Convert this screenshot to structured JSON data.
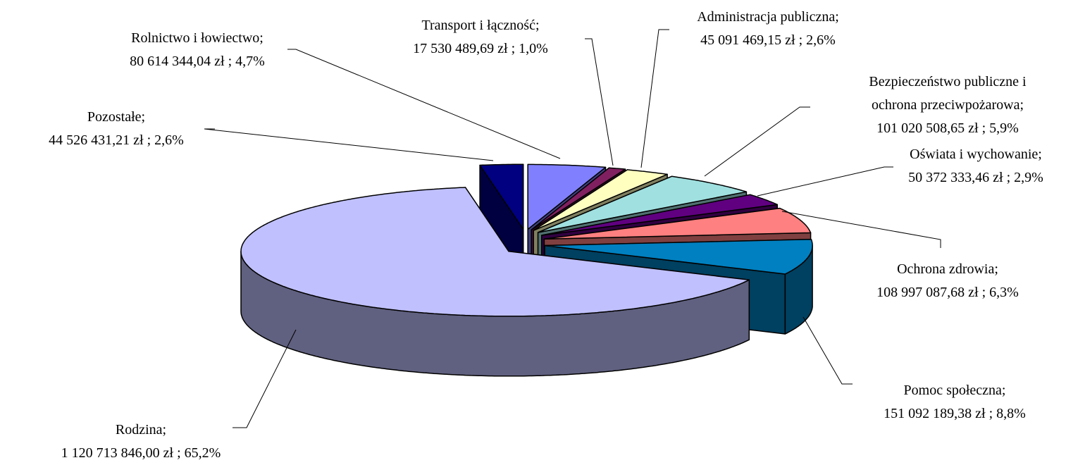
{
  "chart_data": {
    "type": "pie3d",
    "categories": [
      "Rolnictwo i łowiectwo;",
      "Transport i łączność;",
      "Administracja publiczna;",
      "Bezpieczeństwo publiczne i ochrona przeciwpożarowa;",
      "Oświata i wychowanie;",
      "Ochrona zdrowia;",
      "Pomoc społeczna;",
      "Rodzina;",
      "Pozostałe;"
    ],
    "values": [
      80614344.04,
      17530489.69,
      45091469.15,
      101020508.65,
      50372333.46,
      108997087.68,
      151092189.38,
      1120713846.0,
      44526431.21
    ],
    "value_labels": [
      "80 614 344,04 zł ; 4,7%",
      "17 530 489,69 zł ; 1,0%",
      "45 091 469,15 zł ; 2,6%",
      "101 020 508,65 zł ; 5,9%",
      "50 372 333,46 zł ; 2,9%",
      "108 997 087,68 zł ; 6,3%",
      "151 092 189,38 zł ; 8,8%",
      "1 120 713 846,00 zł ; 65,2%",
      "44 526 431,21 zł ; 2,6%"
    ],
    "colors": [
      "#8080ff",
      "#802060",
      "#ffffc0",
      "#a0e0e0",
      "#600080",
      "#ff8080",
      "#0080c0",
      "#c0c0ff",
      "#000080"
    ]
  }
}
